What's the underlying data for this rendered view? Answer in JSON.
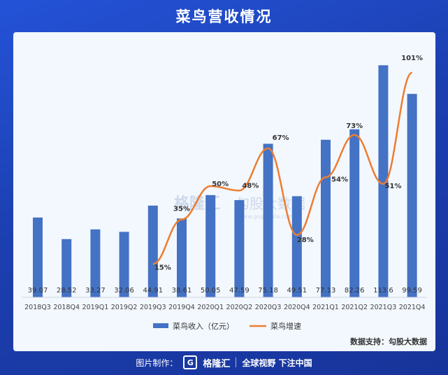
{
  "header": {
    "title": "菜鸟营收情况"
  },
  "footer": {
    "made_by_label": "图片制作：",
    "logo_mark": "G",
    "logo_text": "格隆汇",
    "slogan": "全球视野 下注中国"
  },
  "watermark": {
    "brand": "格隆汇",
    "partner": "勾股大数据",
    "url": "www.gogudata.com"
  },
  "colors": {
    "bar": "#4472c4",
    "line": "#ed7d31",
    "panel": "#f3f8fe",
    "background": "#1c3fb0"
  },
  "chart_data": {
    "type": "bar",
    "title": "",
    "categories": [
      "2018Q3",
      "2018Q4",
      "2019Q1",
      "2019Q2",
      "2019Q3",
      "2019Q4",
      "2020Q1",
      "2020Q2",
      "2020Q3",
      "2020Q4",
      "2021Q1",
      "2021Q2",
      "2021Q3",
      "2021Q4"
    ],
    "series": [
      {
        "name": "菜鸟收入（亿元）",
        "type": "bar",
        "values": [
          39.07,
          28.52,
          33.27,
          32.06,
          44.91,
          38.61,
          50.05,
          47.59,
          75.18,
          49.51,
          77.13,
          82.26,
          113.6,
          99.59
        ],
        "labels": [
          "39.07",
          "28.52",
          "33.27",
          "32.06",
          "44.91",
          "38.61",
          "50.05",
          "47.59",
          "75.18",
          "49.51",
          "77.13",
          "82.26",
          "113.6",
          "99.59"
        ]
      },
      {
        "name": "菜鸟增速",
        "type": "line",
        "values": [
          null,
          null,
          null,
          null,
          15,
          35,
          50,
          48,
          67,
          28,
          54,
          73,
          51,
          101
        ],
        "labels": [
          "",
          "",
          "",
          "",
          "15%",
          "35%",
          "50%",
          "48%",
          "67%",
          "28%",
          "54%",
          "73%",
          "51%",
          "101%"
        ]
      }
    ],
    "legend_position": "bottom",
    "grid": false,
    "source": "数据支持：勾股大数据"
  }
}
